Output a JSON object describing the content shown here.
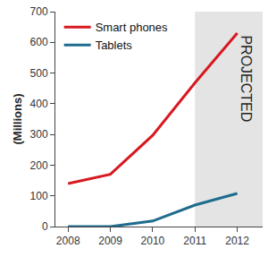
{
  "chart_data": {
    "type": "line",
    "y_label": "(Millions)",
    "x": [
      2008,
      2009,
      2010,
      2011,
      2012
    ],
    "series": [
      {
        "name": "Smart phones",
        "color": "#d71920",
        "values": [
          140,
          170,
          297,
          468,
          630
        ]
      },
      {
        "name": "Tablets",
        "color": "#1e6c8e",
        "values": [
          0,
          0,
          18,
          70,
          108
        ]
      }
    ],
    "xlim": [
      2007.7,
      2012.6
    ],
    "xticks": [
      2008,
      2009,
      2010,
      2011,
      2012
    ],
    "ylim": [
      0,
      700
    ],
    "yticks": [
      0,
      100,
      200,
      300,
      400,
      500,
      600,
      700
    ],
    "grid": false,
    "legend": "upper left",
    "annotations": [
      {
        "text": "PROJECTED",
        "from": 2011
      }
    ]
  }
}
